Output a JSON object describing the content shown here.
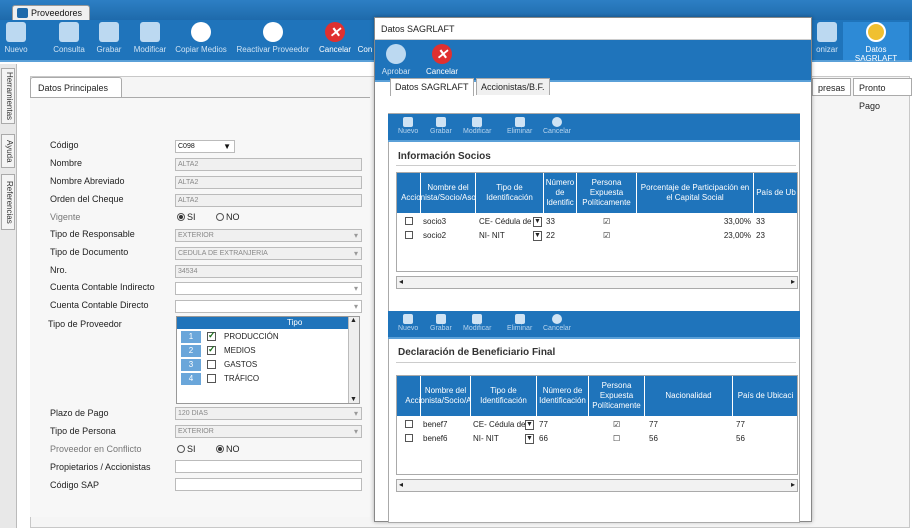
{
  "app_tab": "Proveedores",
  "toolbar": {
    "buttons": [
      "Nuevo",
      "Consulta",
      "Grabar",
      "Modificar",
      "Copiar Medios",
      "Reactivar Proveedor",
      "Cancelar",
      "Con"
    ],
    "right_buttons": [
      "onizar",
      "Datos SAGRLAFT"
    ]
  },
  "side_tabs": [
    "Herramientas",
    "Ayuda",
    "Referencias"
  ],
  "main_tabs": {
    "left": "Datos Principales",
    "right": [
      "presas",
      "Pronto Pago"
    ]
  },
  "form": {
    "codigo_label": "Código",
    "codigo_value": "C098",
    "nombre_label": "Nombre",
    "nombre_value": "ALTA2",
    "nombre_abrev_label": "Nombre Abreviado",
    "nombre_abrev_value": "ALTA2",
    "orden_cheque_label": "Orden del Cheque",
    "orden_cheque_value": "ALTA2",
    "vigente_label": "Vigente",
    "si": "SI",
    "no": "NO",
    "tipo_resp_label": "Tipo de Responsable",
    "tipo_resp_value": "EXTERIOR",
    "tipo_doc_label": "Tipo de Documento",
    "tipo_doc_value": "CEDULA DE EXTRANJERIA",
    "nro_label": "Nro.",
    "nro_value": "34534",
    "cc_indirecto_label": "Cuenta Contable Indirecto",
    "cc_directo_label": "Cuenta Contable Directo",
    "tipo_prov_label": "Tipo de Proveedor",
    "tipo_prov_header": "Tipo",
    "tipo_prov_rows": [
      {
        "n": "1",
        "label": "PRODUCCIÓN",
        "checked": true
      },
      {
        "n": "2",
        "label": "MEDIOS",
        "checked": true
      },
      {
        "n": "3",
        "label": "GASTOS",
        "checked": false
      },
      {
        "n": "4",
        "label": "TRÁFICO",
        "checked": false
      }
    ],
    "plazo_label": "Plazo de Pago",
    "plazo_value": "120 DIAS",
    "tipo_persona_label": "Tipo de Persona",
    "tipo_persona_value": "EXTERIOR",
    "conflicto_label": "Proveedor en Conflicto",
    "propietarios_label": "Propietarios / Accionistas",
    "sap_label": "Código SAP"
  },
  "dialog": {
    "title": "Datos SAGRLAFT",
    "toolbar": [
      "Aprobar",
      "Cancelar"
    ],
    "tabs": [
      "Datos SAGRLAFT",
      "Accionistas/B.F."
    ],
    "mini_toolbar": [
      "Nuevo",
      "Grabar",
      "Modificar",
      "Eliminar",
      "Cancelar"
    ],
    "socios": {
      "title": "Información Socios",
      "headers": [
        "Nombre del Accionista/Socio/Asociado",
        "Tipo de Identificación",
        "Número de Identific",
        "Persona Expuesta Políticamente",
        "Porcentaje de Participación en el Capital Social",
        "País de Ub"
      ],
      "rows": [
        {
          "name": "socio3",
          "tipo": "CE- Cédula de",
          "num": "33",
          "pep": true,
          "pct": "33,00%",
          "pais": "33"
        },
        {
          "name": "socio2",
          "tipo": "NI- NIT",
          "num": "22",
          "pep": true,
          "pct": "23,00%",
          "pais": "23"
        }
      ]
    },
    "benef": {
      "title": "Declaración de Beneficiario Final",
      "headers": [
        "Nombre del Accionista/Socio/Asoci",
        "Tipo de Identificación",
        "Número de Identificación",
        "Persona Expuesta Políticamente",
        "Nacionalidad",
        "País de Ubicaci"
      ],
      "rows": [
        {
          "name": "benef7",
          "tipo": "CE- Cédula de",
          "num": "77",
          "pep": true,
          "nac": "77",
          "pais": "77"
        },
        {
          "name": "benef6",
          "tipo": "NI- NIT",
          "num": "66",
          "pep": false,
          "nac": "56",
          "pais": "56"
        }
      ]
    }
  }
}
